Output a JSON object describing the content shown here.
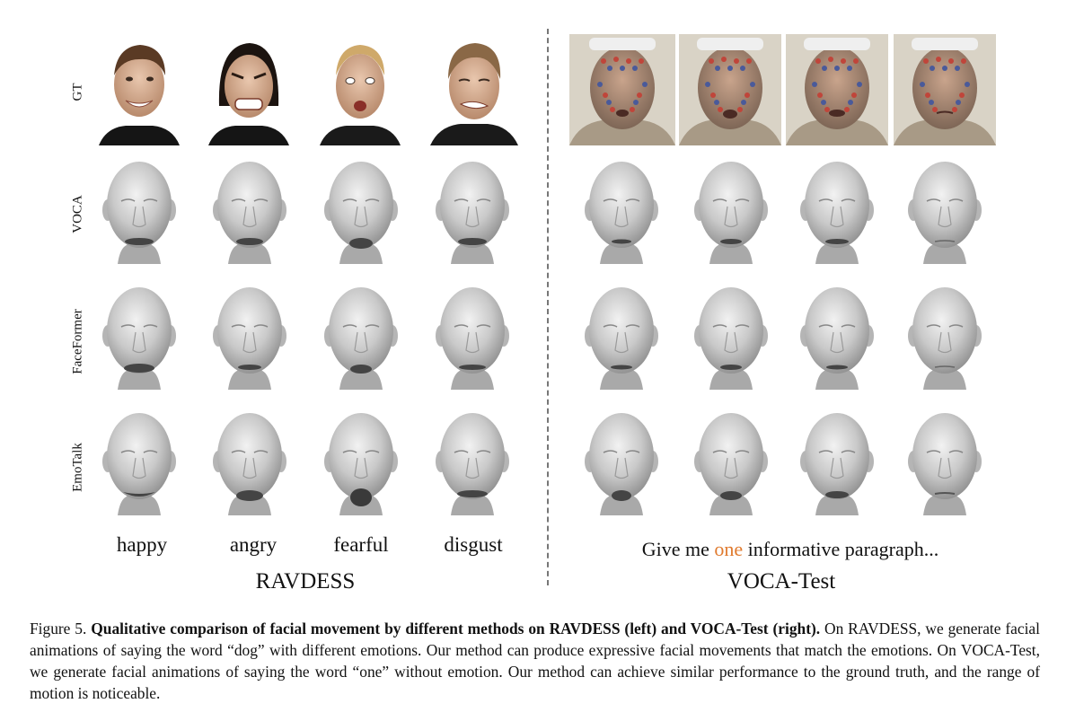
{
  "row_labels": [
    "GT",
    "VOCA",
    "FaceFormer",
    "EmoTalk"
  ],
  "emotions": [
    "happy",
    "angry",
    "fearful",
    "disgust"
  ],
  "datasets": {
    "left": "RAVDESS",
    "right": "VOCA-Test"
  },
  "sentence": {
    "before": "Give me ",
    "highlight": "one",
    "after": " informative paragraph..."
  },
  "caption": {
    "prefix": "Figure 5. ",
    "bold": "Qualitative comparison of facial movement by different methods on RAVDESS (left) and VOCA-Test (right).",
    "rest": " On RAVDESS, we generate facial animations of saying the word “dog” with different emotions. Our method can produce expressive facial movements that match the emotions. On VOCA-Test, we generate facial animations of saying the word “one” without emotion. Our method can achieve similar performance to the ground truth, and the range of motion is noticeable."
  },
  "colors": {
    "highlight": "#e07a2e",
    "mesh": "#c9c9c9"
  }
}
